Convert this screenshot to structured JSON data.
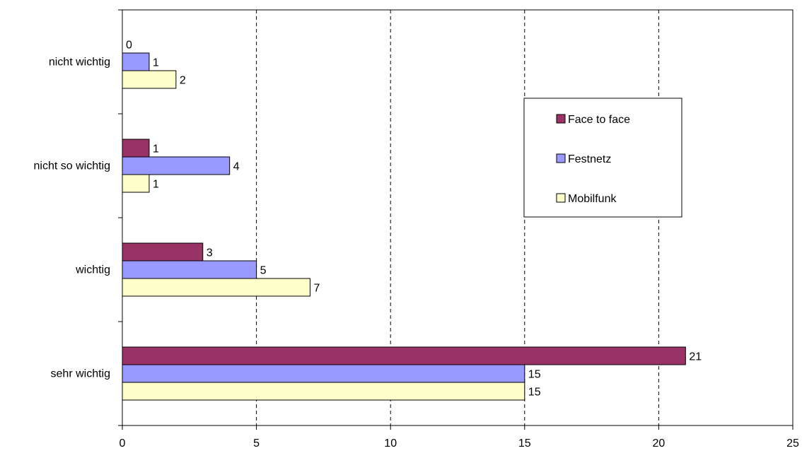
{
  "chart_data": {
    "type": "bar",
    "orientation": "horizontal",
    "title": "",
    "xlabel": "",
    "ylabel": "",
    "xlim": [
      0,
      25
    ],
    "x_ticks": [
      0,
      5,
      10,
      15,
      20,
      25
    ],
    "x_tick_labels": [
      "0",
      "5",
      "10",
      "15",
      "20",
      "25"
    ],
    "grid": "vertical dashed",
    "legend_position": "right",
    "categories": [
      "nicht wichtig",
      "nicht so wichtig",
      "wichtig",
      "sehr wichtig"
    ],
    "series": [
      {
        "name": "Face to face",
        "color": "#993366",
        "values": [
          0,
          1,
          3,
          21
        ]
      },
      {
        "name": "Festnetz",
        "color": "#9999ff",
        "values": [
          1,
          4,
          5,
          15
        ]
      },
      {
        "name": "Mobilfunk",
        "color": "#ffffcc",
        "values": [
          2,
          1,
          7,
          15
        ]
      }
    ]
  }
}
